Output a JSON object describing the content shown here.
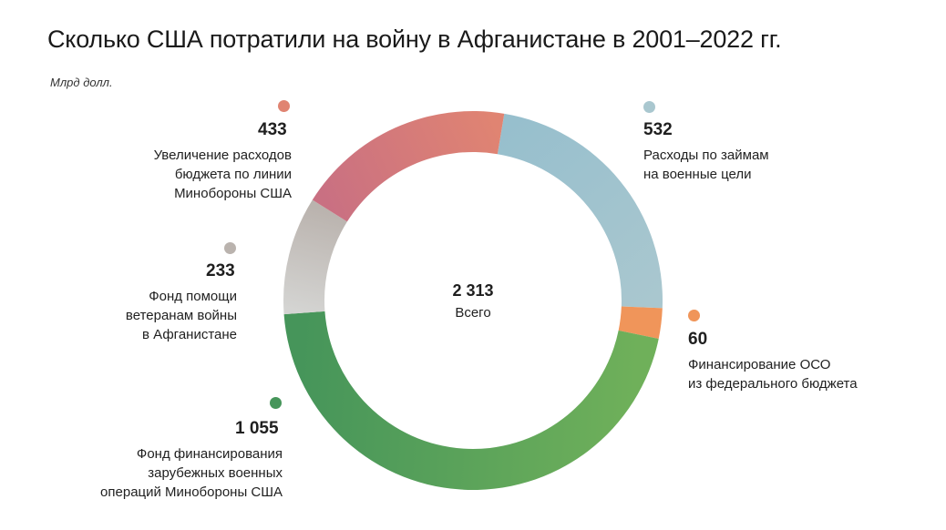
{
  "title": "Сколько США потратили на войну в Афганистане в 2001–2022 гг.",
  "unit": "Млрд долл.",
  "center": {
    "total": "2 313",
    "label": "Всего"
  },
  "chart_data": {
    "type": "donut",
    "title": "Сколько США потратили на войну в Афганистане в 2001–2022 гг.",
    "unit": "Млрд долл.",
    "total": 2313,
    "slices": [
      {
        "label": "Расходы по займам на военные цели",
        "value": 532,
        "display": "532",
        "color_start": "#97bfcd",
        "color_end": "#a9c7cf",
        "lines": [
          "Расходы по займам",
          "на военные цели"
        ]
      },
      {
        "label": "Финансирование ОСО из федерального бюджета",
        "value": 60,
        "display": "60",
        "color_start": "#f0955a",
        "color_end": "#f0955a",
        "lines": [
          "Финансирование ОСО",
          "из федерального бюджета"
        ]
      },
      {
        "label": "Фонд финансирования зарубежных военных операций Минобороны США",
        "value": 1055,
        "display": "1 055",
        "color_start": "#6fb05a",
        "color_end": "#46955a",
        "lines": [
          "Фонд финансирования",
          "зарубежных военных",
          "операций Минобороны США"
        ]
      },
      {
        "label": "Фонд помощи ветеранам войны в Афганистане",
        "value": 233,
        "display": "233",
        "color_start": "#d4d4d2",
        "color_end": "#bab3ae",
        "lines": [
          "Фонд помощи",
          "ветеранам войны",
          "в Афганистане"
        ]
      },
      {
        "label": "Увеличение расходов бюджета по линии Минобороны США",
        "value": 433,
        "display": "433",
        "color_start": "#c97082",
        "color_end": "#e08472",
        "lines": [
          "Увеличение расходов",
          "бюджета по линии",
          "Минобороны США"
        ]
      }
    ]
  }
}
